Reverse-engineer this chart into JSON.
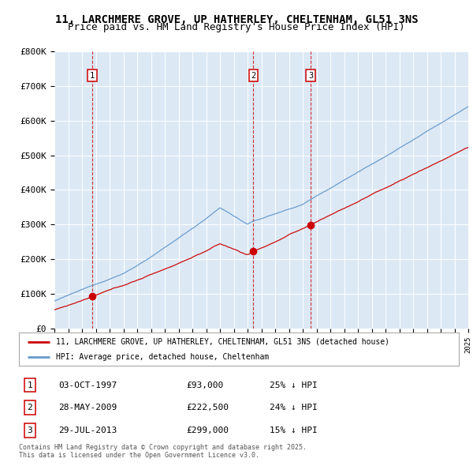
{
  "title": "11, LARCHMERE GROVE, UP HATHERLEY, CHELTENHAM, GL51 3NS",
  "subtitle": "Price paid vs. HM Land Registry's House Price Index (HPI)",
  "ylim": [
    0,
    800000
  ],
  "yticks": [
    0,
    100000,
    200000,
    300000,
    400000,
    500000,
    600000,
    700000,
    800000
  ],
  "ytick_labels": [
    "£0",
    "£100K",
    "£200K",
    "£300K",
    "£400K",
    "£500K",
    "£600K",
    "£700K",
    "£800K"
  ],
  "background_color": "#ffffff",
  "plot_bg_color": "#dce9f5",
  "red_line_color": "#cc0000",
  "blue_line_color": "#6699cc",
  "grid_color": "#ffffff",
  "legend_label_red": "11, LARCHMERE GROVE, UP HATHERLEY, CHELTENHAM, GL51 3NS (detached house)",
  "legend_label_blue": "HPI: Average price, detached house, Cheltenham",
  "transactions": [
    {
      "num": 1,
      "date": "03-OCT-1997",
      "price": 93000,
      "year": 1997.75,
      "pct": "25%",
      "dir": "↓"
    },
    {
      "num": 2,
      "date": "28-MAY-2009",
      "price": 222500,
      "year": 2009.42,
      "pct": "24%",
      "dir": "↓"
    },
    {
      "num": 3,
      "date": "29-JUL-2013",
      "price": 299000,
      "year": 2013.58,
      "pct": "15%",
      "dir": "↓"
    }
  ],
  "footer": "Contains HM Land Registry data © Crown copyright and database right 2025.\nThis data is licensed under the Open Government Licence v3.0.",
  "title_fontsize": 10,
  "subtitle_fontsize": 9
}
